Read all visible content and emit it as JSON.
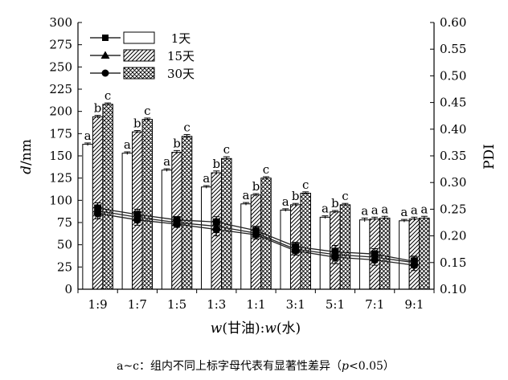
{
  "chart_data": {
    "type": "bar",
    "categories": [
      "1:9",
      "1:7",
      "1:5",
      "1:3",
      "1:1",
      "3:1",
      "5:1",
      "7:1",
      "9:1"
    ],
    "xlabel": "w(甘油):w(水)",
    "ylabel": "d/nm",
    "ylabel_right": "PDI",
    "ylim": [
      0,
      300
    ],
    "yticks": [
      "0",
      "25",
      "50",
      "75",
      "100",
      "125",
      "150",
      "175",
      "200",
      "225",
      "250",
      "275",
      "300"
    ],
    "ylim_right": [
      0.1,
      0.6
    ],
    "yticks_right": [
      "0.10",
      "0.15",
      "0.20",
      "0.25",
      "0.30",
      "0.35",
      "0.40",
      "0.45",
      "0.50",
      "0.55",
      "0.60"
    ],
    "grid": false,
    "legend_position": "top-left",
    "series": [
      {
        "name": "1天",
        "pattern": "plain",
        "values": [
          163,
          153,
          134,
          115,
          96,
          89,
          81,
          78,
          77
        ],
        "errors": [
          1.5,
          1.5,
          1.5,
          1.5,
          1.5,
          1.5,
          1.5,
          2,
          1.5
        ],
        "significance": [
          "a",
          "a",
          "a",
          "a",
          "a",
          "a",
          "a",
          "a",
          "a"
        ]
      },
      {
        "name": "15天",
        "pattern": "hatch",
        "values": [
          194,
          177,
          154,
          131,
          106,
          95,
          87,
          79,
          79
        ],
        "errors": [
          1.5,
          1.5,
          2,
          2,
          1.5,
          1.5,
          1.5,
          2,
          2
        ],
        "significance": [
          "b",
          "b",
          "b",
          "b",
          "b",
          "b",
          "b",
          "a",
          "a"
        ]
      },
      {
        "name": "30天",
        "pattern": "crosshatch",
        "values": [
          208,
          191,
          172,
          147,
          125,
          108,
          95,
          80,
          80
        ],
        "errors": [
          1.5,
          1.5,
          2,
          2,
          1.5,
          1.5,
          1.5,
          2,
          2
        ],
        "significance": [
          "c",
          "c",
          "c",
          "c",
          "c",
          "c",
          "c",
          "a",
          "a"
        ]
      }
    ],
    "pdi_series": [
      {
        "name": "1天",
        "marker": "square",
        "values": [
          0.252,
          0.24,
          0.23,
          0.226,
          0.21,
          0.18,
          0.17,
          0.166,
          0.152
        ],
        "errors": [
          0.01,
          0.01,
          0.006,
          0.01,
          0.008,
          0.008,
          0.012,
          0.01,
          0.01
        ]
      },
      {
        "name": "15天",
        "marker": "triangle",
        "values": [
          0.247,
          0.235,
          0.225,
          0.218,
          0.205,
          0.175,
          0.165,
          0.16,
          0.15
        ],
        "errors": [
          0.01,
          0.01,
          0.006,
          0.012,
          0.008,
          0.008,
          0.012,
          0.01,
          0.01
        ]
      },
      {
        "name": "30天",
        "marker": "circle",
        "values": [
          0.242,
          0.23,
          0.222,
          0.212,
          0.202,
          0.172,
          0.16,
          0.155,
          0.145
        ],
        "errors": [
          0.01,
          0.01,
          0.006,
          0.012,
          0.008,
          0.008,
          0.012,
          0.01,
          0.01
        ]
      }
    ],
    "footnote": "a~c：组内不同上标字母代表有显著性差异（p<0.05）"
  }
}
